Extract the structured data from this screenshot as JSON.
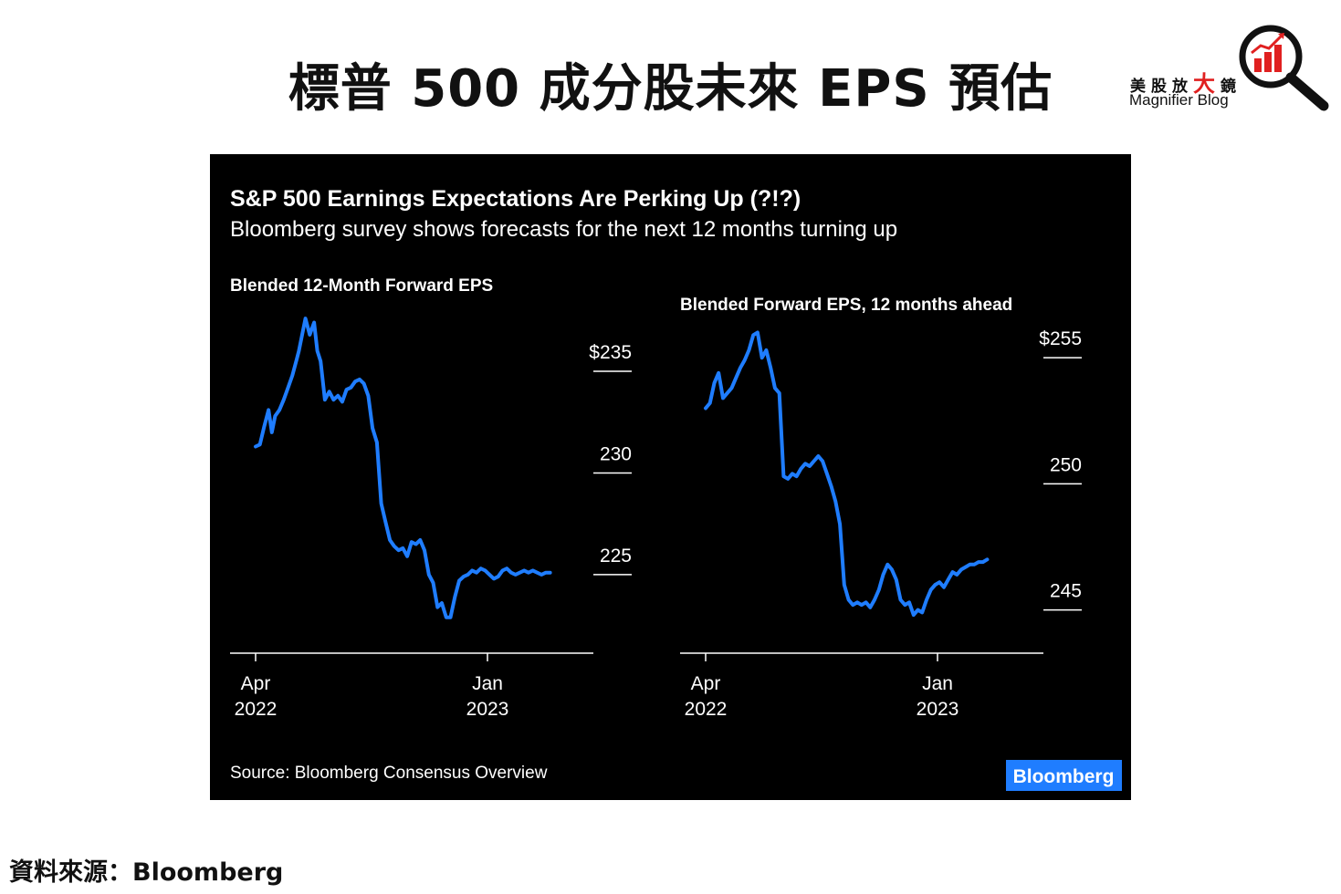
{
  "page_title": "標普 500 成分股未來 EPS 預估",
  "logo": {
    "cn_chars": [
      "美",
      "股",
      "放",
      "大",
      "鏡"
    ],
    "en": "Magnifier Blog",
    "icon": "magnifier-bar-chart-icon",
    "colors": {
      "accent": "#e02020",
      "dark": "#111111"
    }
  },
  "chart": {
    "title": "S&P 500 Earnings Expectations Are Perking Up (?!?)",
    "subtitle": "Bloomberg survey shows forecasts for the next 12 months turning up",
    "source": "Source: Bloomberg Consensus Overview",
    "brand": "Bloomberg",
    "colors": {
      "background": "#000000",
      "line": "#1f7dff",
      "text": "#ffffff",
      "brand_bg": "#1f7dff"
    }
  },
  "footer": {
    "source": "資料來源：Bloomberg"
  },
  "chart_data": [
    {
      "type": "line",
      "title": "Blended 12-Month Forward EPS",
      "x_ticks": [
        {
          "month": "Apr",
          "year": "2022"
        },
        {
          "month": "Jan",
          "year": "2023"
        }
      ],
      "y_ticks": [
        "$235",
        "230",
        "225"
      ],
      "y_tick_values": [
        235,
        230,
        225
      ],
      "ylim": [
        221.9,
        238.5
      ],
      "xlim": [
        0,
        14.5
      ],
      "grid": false,
      "series": [
        {
          "x": [
            0,
            0.2,
            0.4,
            0.6,
            0.75,
            0.9,
            1.1,
            1.3,
            1.5,
            1.7,
            1.9,
            2.0,
            2.15,
            2.3,
            2.5,
            2.7,
            2.85,
            3.0,
            3.2,
            3.4,
            3.6,
            3.8,
            4.0,
            4.2,
            4.4,
            4.6,
            4.8,
            5.0,
            5.2,
            5.4,
            5.6,
            5.8,
            6.0,
            6.2,
            6.4,
            6.6,
            6.8,
            7.0,
            7.2,
            7.4,
            7.6,
            7.8,
            8.0,
            8.2,
            8.4,
            8.6,
            8.8,
            9.0,
            9.2,
            9.4,
            9.6,
            9.8,
            10.0,
            10.2,
            10.4,
            10.6,
            10.8,
            11.0,
            11.2,
            11.4,
            11.6,
            11.8,
            12.0,
            12.2,
            12.4,
            12.6,
            12.8,
            13.0,
            13.2,
            13.4,
            13.6
          ],
          "y": [
            231.3,
            231.4,
            232.3,
            233.1,
            232.0,
            232.8,
            233.1,
            233.6,
            234.2,
            234.8,
            235.6,
            236.0,
            236.8,
            237.6,
            236.8,
            237.4,
            236.0,
            235.5,
            233.6,
            234.0,
            233.6,
            233.8,
            233.5,
            234.1,
            234.2,
            234.5,
            234.6,
            234.4,
            233.8,
            232.2,
            231.5,
            228.5,
            227.6,
            226.7,
            226.4,
            226.2,
            226.3,
            225.9,
            226.6,
            226.5,
            226.7,
            226.2,
            225.0,
            224.6,
            223.4,
            223.6,
            222.9,
            222.9,
            223.9,
            224.7,
            224.9,
            225.0,
            225.2,
            225.1,
            225.3,
            225.2,
            225.0,
            224.8,
            224.9,
            225.2,
            225.3,
            225.1,
            225.0,
            225.1,
            225.2,
            225.1,
            225.2,
            225.1,
            225.0,
            225.1,
            225.1
          ]
        }
      ]
    },
    {
      "type": "line",
      "title": "Blended Forward EPS, 12 months ahead",
      "x_ticks": [
        {
          "month": "Apr",
          "year": "2022"
        },
        {
          "month": "Jan",
          "year": "2023"
        }
      ],
      "y_ticks": [
        "$255",
        "250",
        "245"
      ],
      "y_tick_values": [
        255,
        250,
        245
      ],
      "ylim": [
        243.9,
        256.2
      ],
      "xlim": [
        0,
        14.5
      ],
      "grid": false,
      "series": [
        {
          "x": [
            0,
            0.2,
            0.4,
            0.6,
            0.8,
            1.0,
            1.2,
            1.4,
            1.6,
            1.8,
            2.0,
            2.2,
            2.4,
            2.6,
            2.8,
            3.0,
            3.2,
            3.4,
            3.6,
            3.8,
            4.0,
            4.2,
            4.4,
            4.6,
            4.8,
            5.0,
            5.2,
            5.4,
            5.6,
            5.8,
            6.0,
            6.2,
            6.4,
            6.6,
            6.8,
            7.0,
            7.2,
            7.4,
            7.6,
            7.8,
            8.0,
            8.2,
            8.4,
            8.6,
            8.8,
            9.0,
            9.2,
            9.4,
            9.6,
            9.8,
            10.0,
            10.2,
            10.4,
            10.6,
            10.8,
            11.0,
            11.2,
            11.4,
            11.6,
            11.8,
            12.0,
            12.2,
            12.4,
            12.6,
            12.8,
            13.0
          ],
          "y": [
            253.0,
            253.2,
            254.0,
            254.4,
            253.4,
            253.6,
            253.8,
            254.2,
            254.6,
            254.9,
            255.3,
            255.9,
            256.0,
            255.0,
            255.3,
            254.6,
            253.8,
            253.6,
            250.3,
            250.2,
            250.4,
            250.3,
            250.6,
            250.8,
            250.7,
            250.9,
            251.1,
            250.9,
            250.4,
            249.9,
            249.3,
            248.4,
            246.0,
            245.4,
            245.2,
            245.3,
            245.2,
            245.3,
            245.1,
            245.4,
            245.8,
            246.4,
            246.8,
            246.6,
            246.2,
            245.4,
            245.2,
            245.3,
            244.8,
            245.0,
            244.9,
            245.4,
            245.8,
            246.0,
            246.1,
            245.9,
            246.2,
            246.5,
            246.4,
            246.6,
            246.7,
            246.8,
            246.8,
            246.9,
            246.9,
            247.0
          ]
        }
      ]
    }
  ]
}
